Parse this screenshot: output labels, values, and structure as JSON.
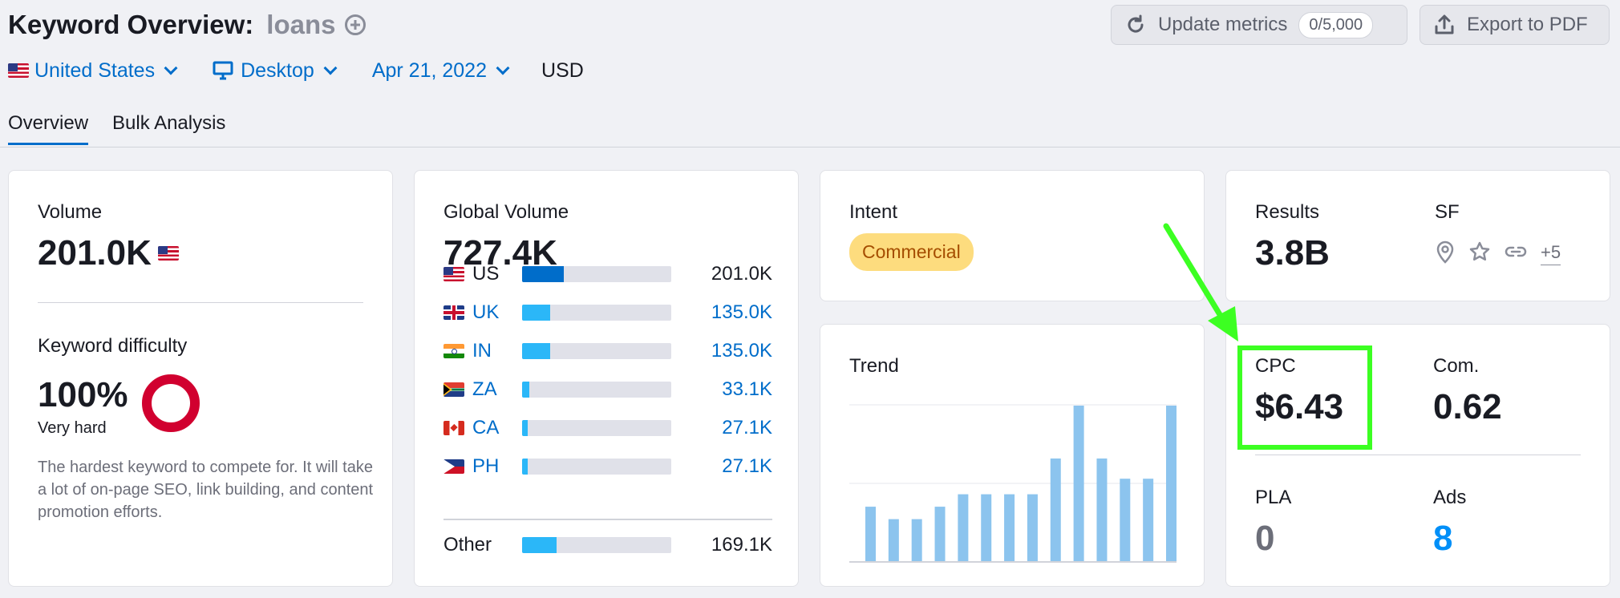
{
  "header": {
    "title": "Keyword Overview:",
    "keyword": "loans",
    "update_label": "Update metrics",
    "update_badge": "0/5,000",
    "export_label": "Export to PDF"
  },
  "filters": {
    "country": "United States",
    "device": "Desktop",
    "date": "Apr 21, 2022",
    "currency": "USD"
  },
  "tabs": [
    "Overview",
    "Bulk Analysis"
  ],
  "volume": {
    "label": "Volume",
    "value": "201.0K",
    "kd_label": "Keyword difficulty",
    "kd_value": "100%",
    "kd_level": "Very hard",
    "kd_percent": 100,
    "kd_description": "The hardest keyword to compete for. It will take a lot of on-page SEO, link building, and content promotion efforts."
  },
  "global_volume": {
    "label": "Global Volume",
    "value": "727.4K",
    "countries": [
      {
        "code": "US",
        "flag": "flag-us",
        "value": "201.0K",
        "share": 0.28,
        "color": "#006dca",
        "link": false
      },
      {
        "code": "UK",
        "flag": "flag-uk",
        "value": "135.0K",
        "share": 0.19,
        "color": "#2bb7f8",
        "link": true
      },
      {
        "code": "IN",
        "flag": "flag-in",
        "value": "135.0K",
        "share": 0.19,
        "color": "#2bb7f8",
        "link": true
      },
      {
        "code": "ZA",
        "flag": "flag-za",
        "value": "33.1K",
        "share": 0.05,
        "color": "#2bb7f8",
        "link": true
      },
      {
        "code": "CA",
        "flag": "flag-ca",
        "value": "27.1K",
        "share": 0.04,
        "color": "#2bb7f8",
        "link": true
      },
      {
        "code": "PH",
        "flag": "flag-ph",
        "value": "27.1K",
        "share": 0.04,
        "color": "#2bb7f8",
        "link": true
      }
    ],
    "other_label": "Other",
    "other_value": "169.1K",
    "other_share": 0.23
  },
  "intent": {
    "label": "Intent",
    "value": "Commercial"
  },
  "trend": {
    "label": "Trend",
    "values": [
      0.35,
      0.27,
      0.27,
      0.35,
      0.43,
      0.43,
      0.43,
      0.43,
      0.66,
      1.0,
      0.66,
      0.53,
      0.53,
      1.0
    ]
  },
  "results": {
    "label": "Results",
    "value": "3.8B",
    "sf_label": "SF",
    "sf_icons": [
      "map-pin-icon",
      "star-icon",
      "link-icon"
    ],
    "sf_more": "+5"
  },
  "metrics": {
    "cpc_label": "CPC",
    "cpc_value": "$6.43",
    "com_label": "Com.",
    "com_value": "0.62",
    "pla_label": "PLA",
    "pla_value": "0",
    "ads_label": "Ads",
    "ads_value": "8"
  },
  "colors": {
    "accent": "#006dca",
    "highlight": "#3cff22",
    "kd_ring": "#d1002f",
    "intent_bg": "#fddc7e",
    "intent_text": "#a54d00",
    "trend_bar": "#8cc4ee"
  }
}
